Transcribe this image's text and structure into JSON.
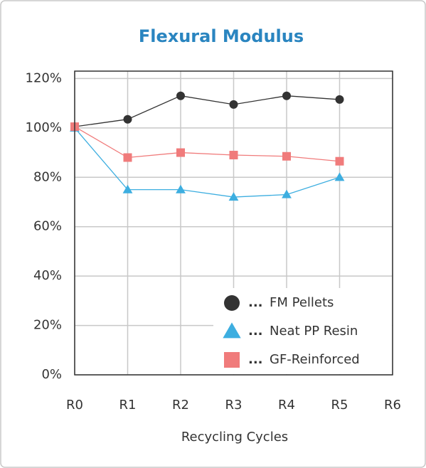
{
  "chart_data": {
    "type": "line",
    "title": "Flexural Modulus",
    "x_label": "Recycling Cycles",
    "categories": [
      "R0",
      "R1",
      "R2",
      "R3",
      "R4",
      "R5",
      "R6"
    ],
    "series": [
      {
        "name": "FM Pellets",
        "color": "#333333",
        "marker": "circle",
        "values": [
          100.5,
          103.5,
          113,
          109.5,
          113,
          111.5,
          null
        ]
      },
      {
        "name": "Neat PP Resin",
        "color": "#3daee0",
        "marker": "triangle",
        "values": [
          100,
          75,
          75,
          72,
          73,
          80,
          null
        ]
      },
      {
        "name": "GF-Reinforced",
        "color": "#f07b7b",
        "marker": "square",
        "values": [
          100.5,
          88,
          90,
          89,
          88.5,
          86.5,
          null
        ]
      }
    ],
    "legend_separator": "...",
    "ylim": [
      0,
      123
    ],
    "yticks": [
      {
        "value": 0,
        "label": "0%"
      },
      {
        "value": 20,
        "label": "20%"
      },
      {
        "value": 40,
        "label": "40%"
      },
      {
        "value": 60,
        "label": "60%"
      },
      {
        "value": 80,
        "label": "80%"
      },
      {
        "value": 100,
        "label": "100%"
      },
      {
        "value": 120,
        "label": "120%"
      }
    ],
    "grid": true,
    "legend": "lower right"
  }
}
